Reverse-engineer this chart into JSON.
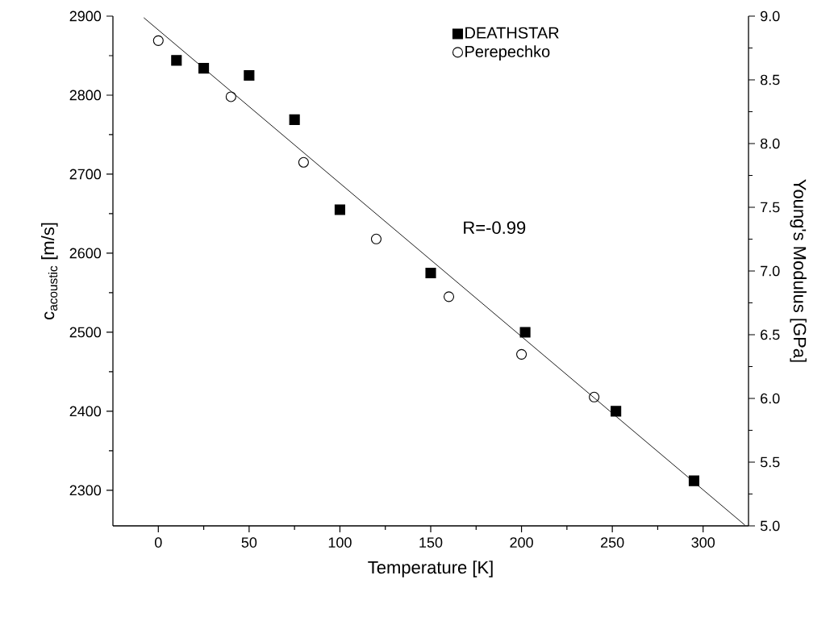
{
  "chart_data": {
    "type": "scatter",
    "xlabel": "Temperature [K]",
    "ylabel": "c$_{acoustic}$ [m/s]",
    "y2label": "Young's Modulus [GPa]",
    "xlim": [
      -25,
      325
    ],
    "xticks": [
      0,
      50,
      100,
      150,
      200,
      250,
      300
    ],
    "ylim": [
      2255,
      2900
    ],
    "yticks": [
      2300,
      2400,
      2500,
      2600,
      2700,
      2800,
      2900
    ],
    "y2lim": [
      5,
      9
    ],
    "y2ticks": [
      {
        "value": 5,
        "label": "5.0"
      },
      {
        "value": 5.5,
        "label": "5.5"
      },
      {
        "value": 6,
        "label": "6.0"
      },
      {
        "value": 6.5,
        "label": "6.5"
      },
      {
        "value": 7,
        "label": "7.0"
      },
      {
        "value": 7.5,
        "label": "7.5"
      },
      {
        "value": 8,
        "label": "8.0"
      },
      {
        "value": 8.5,
        "label": "8.5"
      },
      {
        "value": 9,
        "label": "9.0"
      }
    ],
    "legend": "top",
    "annotations": [
      "R=-0.99"
    ],
    "series": [
      {
        "name": "DEATHSTAR",
        "color": "#000000",
        "marker": "square",
        "x": [
          10,
          25,
          50,
          75,
          100,
          150,
          202,
          252,
          295
        ],
        "values": [
          2844,
          2834,
          2825,
          2769,
          2655,
          2575,
          2500,
          2400,
          2312
        ]
      },
      {
        "name": "Perepechko",
        "color": "#000000",
        "marker": "circle",
        "x": [
          0,
          40,
          80,
          120,
          160,
          200,
          240
        ],
        "values": [
          2869,
          2798,
          2715,
          2618,
          2545,
          2472,
          2418
        ]
      },
      {
        "type": "line",
        "color": "#000000",
        "marker": "none",
        "x": [
          -8,
          323
        ],
        "values": [
          2898,
          2256
        ]
      }
    ]
  }
}
